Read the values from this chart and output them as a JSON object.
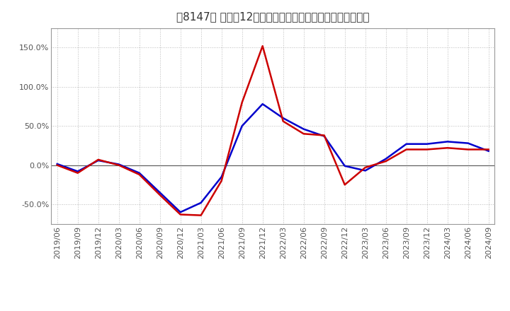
{
  "title": "［8147］ 利益の12か月移動合計の対前年同期増減率の推移",
  "ylim": [
    -75,
    175
  ],
  "yticks": [
    -50.0,
    0.0,
    50.0,
    100.0,
    150.0
  ],
  "background_color": "#ffffff",
  "plot_bg_color": "#ffffff",
  "grid_color": "#bbbbbb",
  "line_color_keijo": "#0000cc",
  "line_color_touki": "#cc0000",
  "x_labels": [
    "2019/06",
    "2019/09",
    "2019/12",
    "2020/03",
    "2020/06",
    "2020/09",
    "2020/12",
    "2021/03",
    "2021/06",
    "2021/09",
    "2021/12",
    "2022/03",
    "2022/06",
    "2022/09",
    "2022/12",
    "2023/03",
    "2023/06",
    "2023/09",
    "2023/12",
    "2024/03",
    "2024/06",
    "2024/09"
  ],
  "keijo": [
    1.5,
    -8.0,
    6.0,
    1.0,
    -10.0,
    -35.0,
    -60.0,
    -48.0,
    -15.0,
    50.0,
    78.0,
    60.0,
    46.0,
    37.0,
    -1.0,
    -7.0,
    8.0,
    27.0,
    27.0,
    30.0,
    28.0,
    18.0
  ],
  "touki": [
    0.0,
    -10.0,
    7.0,
    0.0,
    -12.0,
    -38.0,
    -63.0,
    -64.0,
    -20.0,
    80.0,
    152.0,
    56.0,
    40.0,
    38.0,
    -25.0,
    -3.0,
    5.0,
    20.0,
    20.0,
    22.0,
    20.0,
    20.0
  ],
  "title_fontsize": 11,
  "tick_fontsize": 8,
  "legend_fontsize": 9,
  "linewidth": 1.8
}
